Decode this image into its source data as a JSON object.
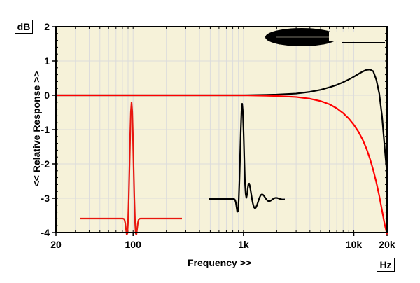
{
  "chart_data": {
    "type": "line",
    "xscale": "log",
    "xlim": [
      20,
      20000
    ],
    "ylim": [
      -4,
      2
    ],
    "grid": true,
    "xlabel": "Frequency >>",
    "ylabel": "<< Relative Response >>",
    "x_unit": "Hz",
    "y_unit": "dB",
    "x_ticks": [
      {
        "value": 20,
        "label": "20"
      },
      {
        "value": 100,
        "label": "100"
      },
      {
        "value": 1000,
        "label": "1k"
      },
      {
        "value": 10000,
        "label": "10k"
      },
      {
        "value": 20000,
        "label": "20k"
      }
    ],
    "y_ticks": [
      {
        "value": 2,
        "label": "2"
      },
      {
        "value": 1,
        "label": "1"
      },
      {
        "value": 0,
        "label": "0"
      },
      {
        "value": -1,
        "label": "-1"
      },
      {
        "value": -2,
        "label": "-2"
      },
      {
        "value": -3,
        "label": "-3"
      },
      {
        "value": -4,
        "label": "-4"
      }
    ],
    "series": [
      {
        "color": "#000000",
        "x": [
          20,
          500,
          1000,
          2000,
          3000,
          4000,
          5000,
          6000,
          7000,
          8000,
          9000,
          10000,
          11000,
          12000,
          13000,
          14000,
          15000,
          16000,
          17000,
          18000,
          19000,
          20000
        ],
        "y": [
          0,
          0,
          0,
          0.02,
          0.05,
          0.1,
          0.16,
          0.23,
          0.3,
          0.38,
          0.46,
          0.54,
          0.62,
          0.69,
          0.74,
          0.75,
          0.7,
          0.45,
          0.05,
          -0.6,
          -1.5,
          -2.3
        ]
      },
      {
        "color": "#ff0000",
        "x": [
          20,
          1000,
          2000,
          3000,
          4000,
          5000,
          6000,
          7000,
          8000,
          9000,
          10000,
          11000,
          12000,
          13000,
          14000,
          15000,
          16000,
          17000,
          18000,
          19000,
          20000
        ],
        "y": [
          0,
          0,
          -0.02,
          -0.05,
          -0.1,
          -0.17,
          -0.26,
          -0.38,
          -0.52,
          -0.68,
          -0.86,
          -1.06,
          -1.29,
          -1.55,
          -1.85,
          -2.18,
          -2.54,
          -2.93,
          -3.35,
          -3.75,
          -4.05
        ]
      }
    ]
  }
}
